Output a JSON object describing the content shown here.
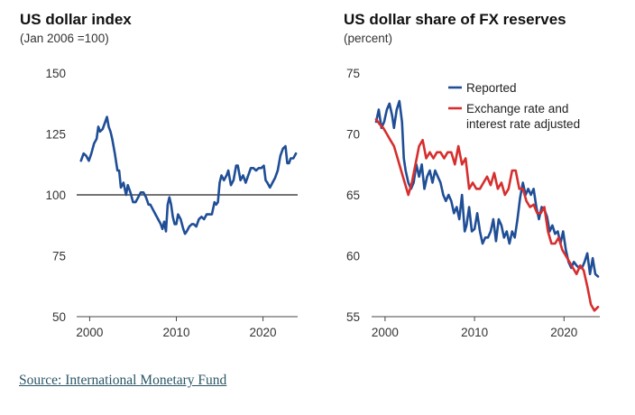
{
  "source": {
    "label": "Source: International Monetary Fund"
  },
  "chart_data": [
    {
      "type": "line",
      "title": "US dollar index",
      "subtitle": "(Jan 2006 =100)",
      "xlim": [
        1998.5,
        2024
      ],
      "ylim": [
        50,
        150
      ],
      "xticks": [
        "2000",
        "2010",
        "2020"
      ],
      "yticks": [
        "150",
        "125",
        "100",
        "75",
        "50"
      ],
      "reference_line": 100,
      "grid": false,
      "series": [
        {
          "color": "#1f4e96",
          "x": [
            1999.0,
            1999.3,
            1999.6,
            1999.9,
            2000.2,
            2000.5,
            2000.8,
            2001.0,
            2001.2,
            2001.5,
            2001.8,
            2002.0,
            2002.2,
            2002.4,
            2002.6,
            2002.9,
            2003.2,
            2003.4,
            2003.6,
            2003.9,
            2004.2,
            2004.4,
            2004.7,
            2005.0,
            2005.3,
            2005.6,
            2005.9,
            2006.2,
            2006.5,
            2006.8,
            2007.0,
            2007.3,
            2007.6,
            2007.9,
            2008.2,
            2008.4,
            2008.6,
            2008.8,
            2009.0,
            2009.2,
            2009.4,
            2009.6,
            2009.8,
            2010.0,
            2010.2,
            2010.5,
            2010.8,
            2011.0,
            2011.2,
            2011.5,
            2011.8,
            2012.0,
            2012.3,
            2012.6,
            2012.9,
            2013.2,
            2013.5,
            2013.8,
            2014.1,
            2014.4,
            2014.6,
            2014.8,
            2015.0,
            2015.2,
            2015.5,
            2015.8,
            2016.0,
            2016.3,
            2016.6,
            2016.9,
            2017.1,
            2017.4,
            2017.7,
            2018.0,
            2018.3,
            2018.6,
            2018.9,
            2019.2,
            2019.5,
            2019.8,
            2020.1,
            2020.3,
            2020.5,
            2020.8,
            2021.1,
            2021.4,
            2021.7,
            2022.0,
            2022.3,
            2022.6,
            2022.8,
            2023.0,
            2023.2,
            2023.5,
            2023.8
          ],
          "y": [
            114,
            117,
            116,
            114,
            117,
            121,
            123,
            128,
            126,
            127,
            130,
            132,
            128,
            126,
            123,
            117,
            110,
            110,
            103,
            105,
            100,
            104,
            101,
            97,
            97,
            99,
            101,
            101,
            99,
            96,
            96,
            94,
            92,
            90,
            88,
            86,
            89,
            85,
            96,
            99,
            96,
            91,
            88,
            88,
            92,
            90,
            86,
            84,
            85,
            87,
            88,
            88,
            87,
            90,
            91,
            90,
            92,
            92,
            92,
            97,
            96,
            97,
            105,
            108,
            106,
            108,
            110,
            104,
            106,
            112,
            112,
            106,
            108,
            105,
            108,
            111,
            111,
            110,
            111,
            111,
            112,
            106,
            105,
            103,
            105,
            107,
            110,
            116,
            119,
            120,
            113,
            113,
            115,
            115,
            117
          ]
        }
      ]
    },
    {
      "type": "line",
      "title": "US dollar share of FX reserves",
      "subtitle": "(percent)",
      "xlim": [
        1998.5,
        2024
      ],
      "ylim": [
        55,
        75
      ],
      "xticks": [
        "2000",
        "2010",
        "2020"
      ],
      "yticks": [
        "75",
        "70",
        "65",
        "60",
        "55"
      ],
      "legend": "top-right",
      "grid": false,
      "series": [
        {
          "name": "Reported",
          "color": "#1f4e96",
          "x": [
            1999.0,
            1999.3,
            1999.6,
            1999.9,
            2000.2,
            2000.5,
            2000.8,
            2001.0,
            2001.3,
            2001.6,
            2001.9,
            2002.1,
            2002.3,
            2002.6,
            2002.9,
            2003.2,
            2003.5,
            2003.8,
            2004.1,
            2004.4,
            2004.7,
            2005.0,
            2005.3,
            2005.6,
            2005.9,
            2006.2,
            2006.5,
            2006.8,
            2007.1,
            2007.4,
            2007.7,
            2008.0,
            2008.3,
            2008.6,
            2008.9,
            2009.1,
            2009.4,
            2009.7,
            2010.0,
            2010.3,
            2010.6,
            2010.9,
            2011.2,
            2011.5,
            2011.8,
            2012.1,
            2012.4,
            2012.7,
            2013.0,
            2013.3,
            2013.6,
            2013.9,
            2014.2,
            2014.5,
            2014.8,
            2015.1,
            2015.4,
            2015.7,
            2016.0,
            2016.3,
            2016.6,
            2016.9,
            2017.2,
            2017.5,
            2017.8,
            2018.1,
            2018.4,
            2018.7,
            2019.0,
            2019.3,
            2019.6,
            2019.9,
            2020.2,
            2020.5,
            2020.8,
            2021.1,
            2021.4,
            2021.7,
            2022.0,
            2022.3,
            2022.6,
            2022.9,
            2023.2,
            2023.5,
            2023.8
          ],
          "y": [
            71,
            72,
            70.5,
            71,
            72,
            72.5,
            71.5,
            70.5,
            72,
            72.7,
            71,
            68,
            67,
            66,
            65.5,
            66,
            67.5,
            66.5,
            67.5,
            65.5,
            66.5,
            67,
            66,
            67,
            66.5,
            66,
            65,
            64.5,
            65,
            64.5,
            63.5,
            64,
            63,
            65,
            62,
            62.5,
            64,
            62,
            62.2,
            63.5,
            62,
            61,
            61.5,
            61.5,
            62,
            63,
            61.2,
            63,
            62.5,
            61.5,
            62,
            61,
            62,
            61.5,
            63,
            64.8,
            66,
            65,
            65.5,
            65,
            65.5,
            64,
            63,
            64,
            63.8,
            63.2,
            62,
            62.5,
            61.8,
            62,
            61,
            62,
            60.5,
            59.5,
            59,
            59.5,
            59.2,
            59,
            59,
            59.5,
            60.2,
            58.5,
            59.8,
            58.5,
            58.3
          ]
        },
        {
          "name": "Exchange rate and interest rate adjusted",
          "color": "#d62e2e",
          "x": [
            1999.0,
            1999.4,
            1999.8,
            2000.2,
            2000.6,
            2001.0,
            2001.4,
            2001.8,
            2002.2,
            2002.6,
            2003.0,
            2003.4,
            2003.8,
            2004.2,
            2004.6,
            2005.0,
            2005.4,
            2005.8,
            2006.2,
            2006.6,
            2007.0,
            2007.4,
            2007.8,
            2008.2,
            2008.6,
            2009.0,
            2009.4,
            2009.8,
            2010.2,
            2010.6,
            2011.0,
            2011.4,
            2011.8,
            2012.2,
            2012.6,
            2013.0,
            2013.4,
            2013.8,
            2014.2,
            2014.6,
            2015.0,
            2015.4,
            2015.8,
            2016.2,
            2016.6,
            2017.0,
            2017.4,
            2017.8,
            2018.2,
            2018.6,
            2019.0,
            2019.4,
            2019.8,
            2020.2,
            2020.6,
            2021.0,
            2021.4,
            2021.8,
            2022.2,
            2022.6,
            2023.0,
            2023.4,
            2023.8
          ],
          "y": [
            71.2,
            70.8,
            70.5,
            70,
            69.5,
            69,
            68,
            67,
            66,
            65,
            66,
            67.5,
            69,
            69.5,
            68,
            68.5,
            68,
            68.5,
            68.5,
            68,
            68.5,
            68.5,
            67.5,
            69,
            67.5,
            68,
            65.5,
            66,
            65.5,
            65.5,
            66,
            66.5,
            65.8,
            66.8,
            65.5,
            66,
            65,
            65.5,
            67,
            67,
            65.5,
            65.5,
            64.5,
            64,
            64.2,
            63.5,
            63.5,
            64,
            62,
            61,
            61,
            61.5,
            60.5,
            60,
            59.5,
            59,
            58.5,
            59.2,
            58.8,
            57.5,
            56,
            55.5,
            55.8
          ]
        }
      ]
    }
  ]
}
